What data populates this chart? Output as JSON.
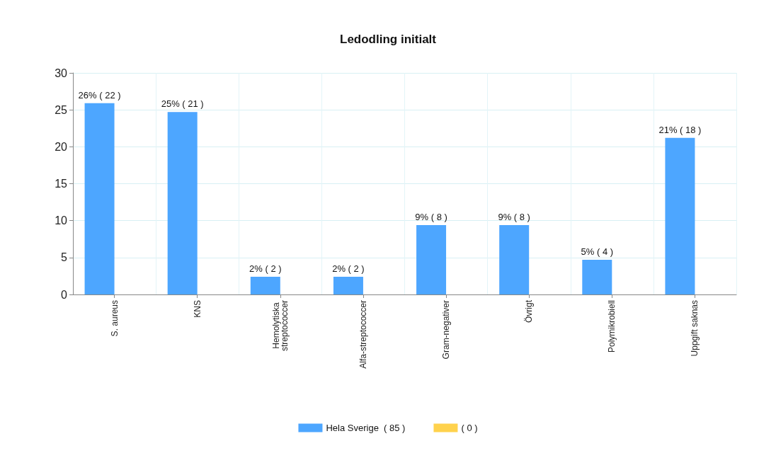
{
  "chart_data": {
    "type": "bar",
    "title": "Ledodling initialt",
    "categories": [
      "S. aureus",
      "KNS",
      "Hemolytiska streptococcer",
      "Alfa-streptococcer",
      "Gram-negativer",
      "Övrigt",
      "Polymikrobiell",
      "Uppgift saknas"
    ],
    "series": [
      {
        "name": "Hela Sverige  ( 85 )",
        "color": "#4da6ff",
        "values": [
          25.9,
          24.7,
          2.4,
          2.4,
          9.4,
          9.4,
          4.7,
          21.2
        ],
        "value_labels": [
          "26% ( 22 )",
          "25% ( 21 )",
          "2% ( 2 )",
          "2% ( 2 )",
          "9% ( 8 )",
          "9% ( 8 )",
          "5% ( 4 )",
          "21% ( 18 )"
        ]
      },
      {
        "name": "( 0 )",
        "color": "#ffd24d",
        "values": [
          0,
          0,
          0,
          0,
          0,
          0,
          0,
          0
        ]
      }
    ],
    "ylim": [
      0,
      30
    ],
    "yticks": [
      0,
      5,
      10,
      15,
      20,
      25,
      30
    ],
    "grid": true,
    "legend": "bottom"
  }
}
